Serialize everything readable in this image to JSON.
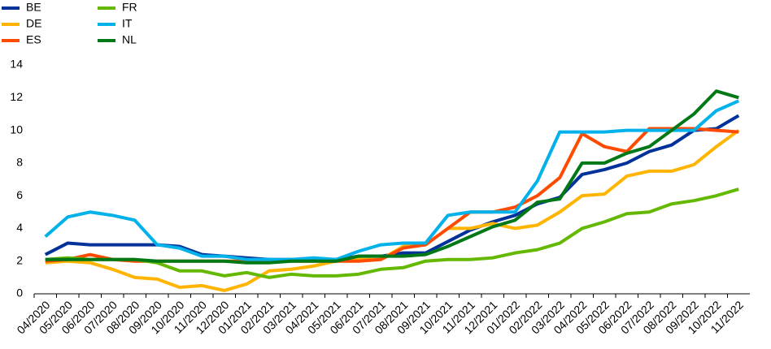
{
  "chart_data": {
    "type": "line",
    "categories": [
      "04/2020",
      "05/2020",
      "06/2020",
      "07/2020",
      "08/2020",
      "09/2020",
      "10/2020",
      "11/2020",
      "12/2020",
      "01/2021",
      "02/2021",
      "03/2021",
      "04/2021",
      "05/2021",
      "06/2021",
      "07/2021",
      "08/2021",
      "09/2021",
      "10/2021",
      "11/2021",
      "12/2021",
      "01/2022",
      "02/2022",
      "03/2022",
      "04/2022",
      "05/2022",
      "06/2022",
      "07/2022",
      "08/2022",
      "09/2022",
      "10/2022",
      "11/2022"
    ],
    "series": [
      {
        "name": "BE",
        "color": "#003299",
        "values": [
          2.4,
          3.1,
          3.0,
          3.0,
          3.0,
          3.0,
          2.9,
          2.4,
          2.3,
          2.2,
          2.1,
          2.1,
          2.1,
          2.1,
          2.3,
          2.3,
          2.5,
          2.5,
          3.2,
          3.9,
          4.4,
          4.8,
          5.5,
          5.9,
          7.3,
          7.6,
          8.0,
          8.7,
          9.1,
          10.0,
          10.1,
          10.9
        ]
      },
      {
        "name": "DE",
        "color": "#ffb400",
        "values": [
          1.9,
          2.0,
          1.9,
          1.5,
          1.0,
          0.9,
          0.4,
          0.5,
          0.2,
          0.6,
          1.4,
          1.5,
          1.7,
          2.0,
          2.1,
          2.1,
          2.9,
          3.0,
          4.0,
          4.0,
          4.3,
          4.0,
          4.2,
          5.0,
          6.0,
          6.1,
          7.2,
          7.5,
          7.5,
          7.9,
          9.0,
          10.0
        ]
      },
      {
        "name": "ES",
        "color": "#ff4b00",
        "values": [
          2.0,
          2.1,
          2.4,
          2.1,
          2.0,
          2.0,
          2.0,
          2.0,
          2.0,
          2.0,
          2.0,
          2.0,
          2.0,
          2.0,
          2.0,
          2.1,
          2.8,
          3.0,
          4.0,
          5.0,
          5.0,
          5.3,
          6.0,
          7.1,
          9.8,
          9.0,
          8.7,
          10.1,
          10.1,
          10.1,
          10.0,
          9.9
        ]
      },
      {
        "name": "FR",
        "color": "#65b800",
        "values": [
          2.1,
          2.2,
          2.1,
          2.1,
          2.1,
          1.9,
          1.4,
          1.4,
          1.1,
          1.3,
          1.0,
          1.2,
          1.1,
          1.1,
          1.2,
          1.5,
          1.6,
          2.0,
          2.1,
          2.1,
          2.2,
          2.5,
          2.7,
          3.1,
          4.0,
          4.4,
          4.9,
          5.0,
          5.5,
          5.7,
          6.0,
          6.4
        ]
      },
      {
        "name": "IT",
        "color": "#00b1ea",
        "values": [
          3.5,
          4.7,
          5.0,
          4.8,
          4.5,
          3.0,
          2.8,
          2.3,
          2.3,
          2.1,
          2.1,
          2.1,
          2.2,
          2.1,
          2.6,
          3.0,
          3.1,
          3.1,
          4.8,
          5.0,
          5.0,
          5.0,
          6.9,
          9.9,
          9.9,
          9.9,
          10.0,
          10.0,
          10.0,
          10.0,
          11.2,
          11.8
        ]
      },
      {
        "name": "NL",
        "color": "#007816",
        "values": [
          2.1,
          2.1,
          2.1,
          2.1,
          2.1,
          2.0,
          2.0,
          2.0,
          2.0,
          1.9,
          1.9,
          2.0,
          2.0,
          2.0,
          2.3,
          2.3,
          2.3,
          2.4,
          2.9,
          3.5,
          4.1,
          4.5,
          5.6,
          5.8,
          8.0,
          8.0,
          8.6,
          9.0,
          10.0,
          11.0,
          12.4,
          12.0
        ]
      }
    ],
    "ylim": [
      0,
      14
    ],
    "yticks": [
      0,
      2,
      4,
      6,
      8,
      10,
      12,
      14
    ],
    "grid": false
  }
}
